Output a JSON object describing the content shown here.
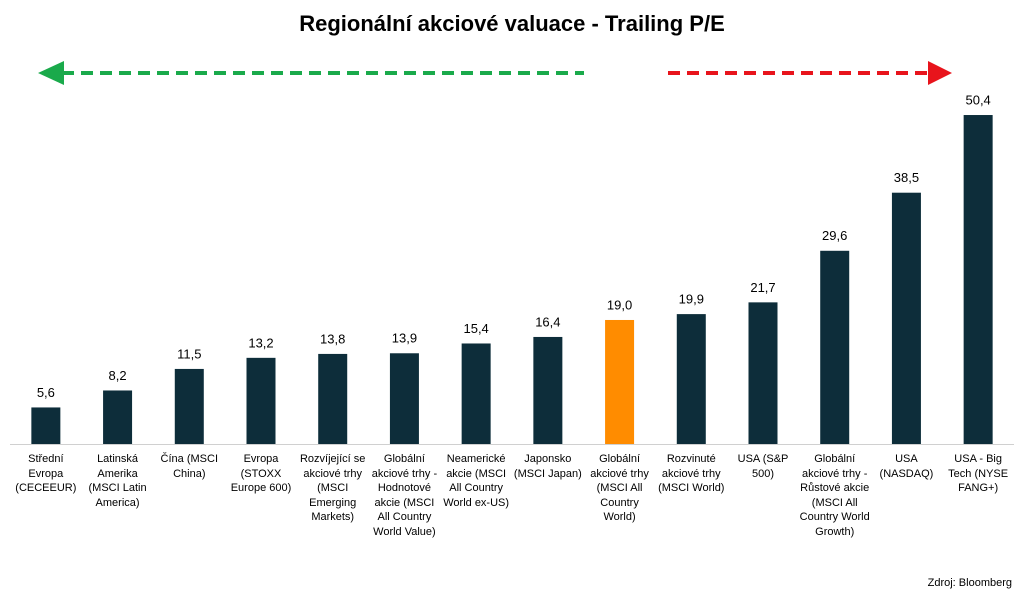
{
  "chart_data": {
    "type": "bar",
    "title": "Regionální akciové valuace - Trailing P/E",
    "categories": [
      "Střední Evropa (CECEEUR)",
      "Latinská Amerika (MSCI Latin America)",
      "Čína (MSCI China)",
      "Evropa (STOXX Europe 600)",
      "Rozvíjející se akciové trhy (MSCI Emerging Markets)",
      "Globální akciové trhy - Hodnotové akcie (MSCI All Country World Value)",
      "Neamerické akcie (MSCI All Country World ex-US)",
      "Japonsko (MSCI Japan)",
      "Globální akciové trhy (MSCI All Country World)",
      "Rozvinuté akciové trhy (MSCI World)",
      "USA (S&P 500)",
      "Globální akciové trhy - Růstové akcie (MSCI All Country World Growth)",
      "USA (NASDAQ)",
      "USA - Big Tech (NYSE FANG+)"
    ],
    "values": [
      5.6,
      8.2,
      11.5,
      13.2,
      13.8,
      13.9,
      15.4,
      16.4,
      19.0,
      19.9,
      21.7,
      29.6,
      38.5,
      50.4
    ],
    "value_labels": [
      "5,6",
      "8,2",
      "11,5",
      "13,2",
      "13,8",
      "13,9",
      "15,4",
      "16,4",
      "19,0",
      "19,9",
      "21,7",
      "29,6",
      "38,5",
      "50,4"
    ],
    "colors": [
      "#0d2d3a",
      "#0d2d3a",
      "#0d2d3a",
      "#0d2d3a",
      "#0d2d3a",
      "#0d2d3a",
      "#0d2d3a",
      "#0d2d3a",
      "#ff8c00",
      "#0d2d3a",
      "#0d2d3a",
      "#0d2d3a",
      "#0d2d3a",
      "#0d2d3a"
    ],
    "ylim": [
      0,
      55
    ],
    "source": "Zdroj: Bloomberg"
  }
}
